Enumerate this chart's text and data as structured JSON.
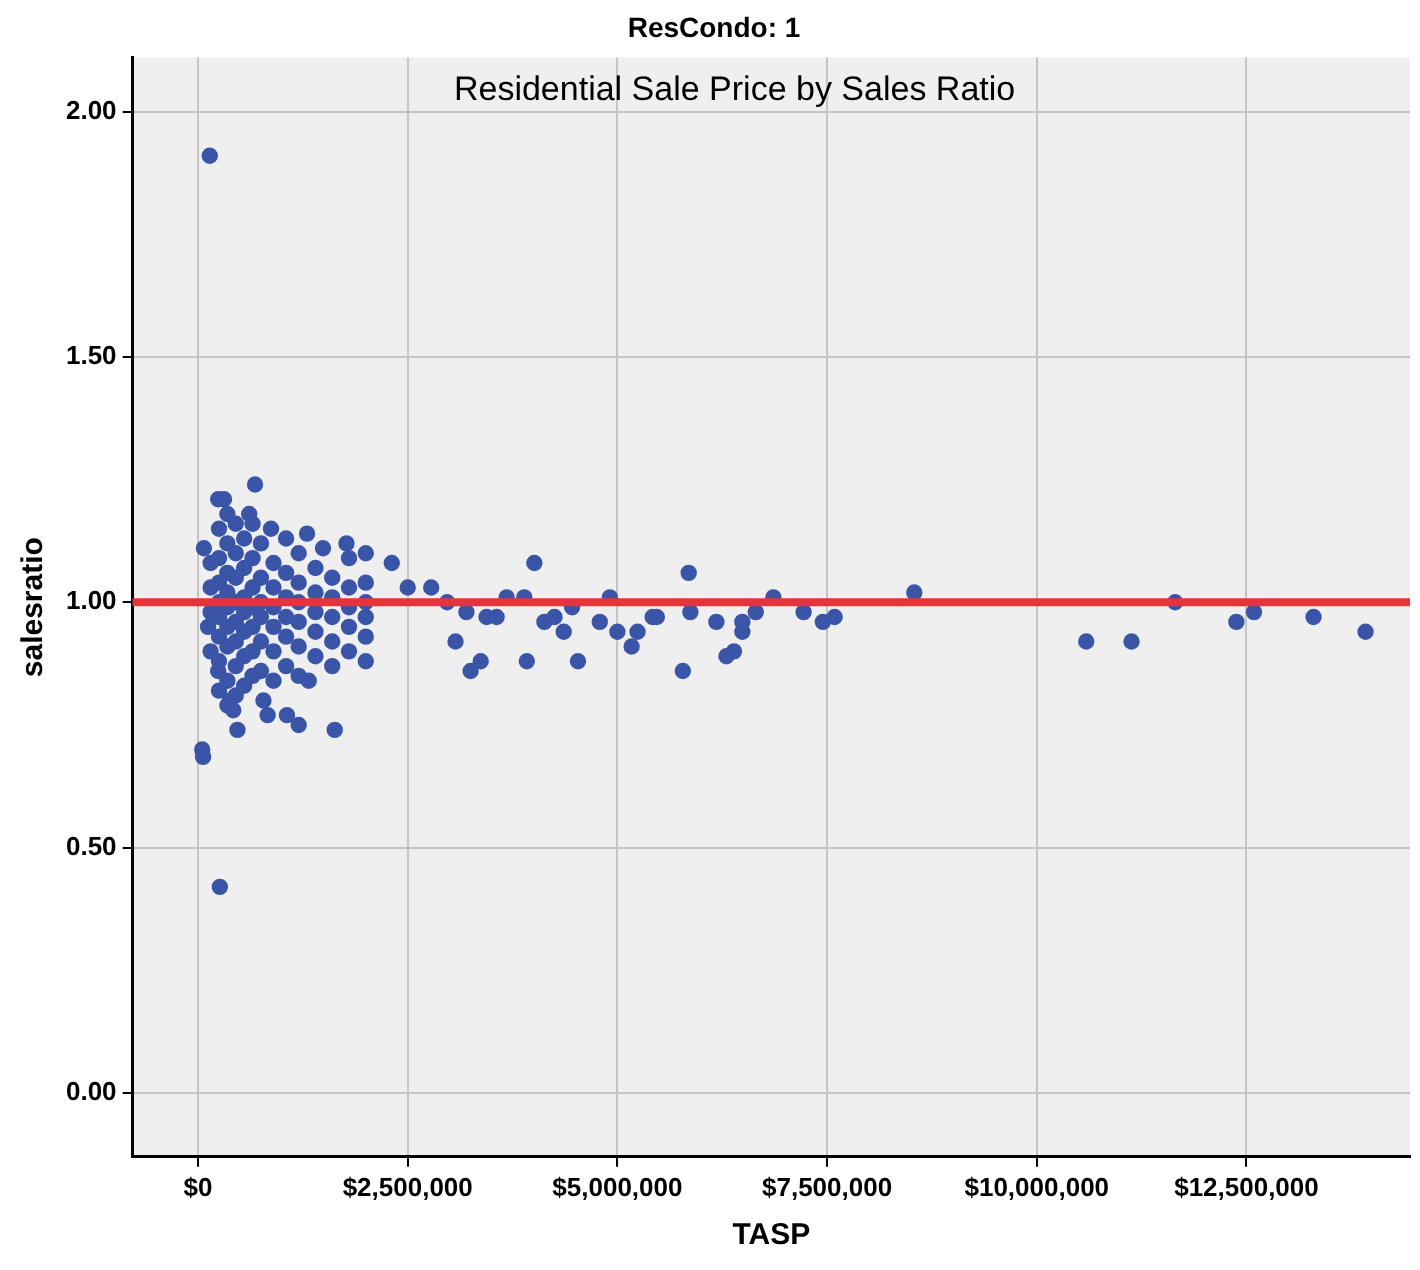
{
  "chart_data": {
    "type": "scatter",
    "title": "Residential Sale Price by Sales Ratio",
    "subtitle": "ResCondo: 1",
    "xlabel": "TASP",
    "ylabel": "salesratio",
    "xlim": [
      -780000,
      14450000
    ],
    "ylim": [
      -0.13,
      2.11
    ],
    "xticks": [
      {
        "value": 0,
        "label": "$0"
      },
      {
        "value": 2500000,
        "label": "$2,500,000"
      },
      {
        "value": 5000000,
        "label": "$5,000,000"
      },
      {
        "value": 7500000,
        "label": "$7,500,000"
      },
      {
        "value": 10000000,
        "label": "$10,000,000"
      },
      {
        "value": 12500000,
        "label": "$12,500,000"
      }
    ],
    "yticks": [
      {
        "value": 0,
        "label": "0.00"
      },
      {
        "value": 0.5,
        "label": "0.50"
      },
      {
        "value": 1,
        "label": "1.00"
      },
      {
        "value": 1.5,
        "label": "1.50"
      },
      {
        "value": 2,
        "label": "2.00"
      }
    ],
    "grid": true,
    "marker": "circle",
    "ref_lines": [
      {
        "axis": "y",
        "value": 1,
        "color": "#e8333a"
      }
    ],
    "series": [
      {
        "color": "#3a55a8",
        "x": [
          140000,
          260000,
          50000,
          60000,
          680000,
          240000,
          310000,
          610000,
          70000,
          870000,
          1300000,
          1490000,
          1770000,
          380000,
          420000,
          470000,
          830000,
          1060000,
          1200000,
          1630000,
          1320000,
          780000,
          240000,
          120000,
          150000,
          150000,
          150000,
          150000,
          250000,
          250000,
          250000,
          250000,
          250000,
          250000,
          250000,
          250000,
          350000,
          350000,
          350000,
          350000,
          350000,
          350000,
          350000,
          350000,
          350000,
          450000,
          450000,
          450000,
          450000,
          450000,
          450000,
          450000,
          450000,
          550000,
          550000,
          550000,
          550000,
          550000,
          550000,
          550000,
          650000,
          650000,
          650000,
          650000,
          650000,
          650000,
          650000,
          750000,
          750000,
          750000,
          750000,
          750000,
          750000,
          900000,
          900000,
          900000,
          900000,
          900000,
          900000,
          1050000,
          1050000,
          1050000,
          1050000,
          1050000,
          1050000,
          1200000,
          1200000,
          1200000,
          1200000,
          1200000,
          1200000,
          1400000,
          1400000,
          1400000,
          1400000,
          1400000,
          1600000,
          1600000,
          1600000,
          1600000,
          1600000,
          1800000,
          1800000,
          1800000,
          1800000,
          1800000,
          2000000,
          2000000,
          2000000,
          2000000,
          2000000,
          2000000,
          2310000,
          2500000,
          2780000,
          2970000,
          3200000,
          3070000,
          3250000,
          3370000,
          3440000,
          3560000,
          3680000,
          3890000,
          4010000,
          3920000,
          4130000,
          4250000,
          4360000,
          4460000,
          4530000,
          4790000,
          4910000,
          5000000,
          5170000,
          5240000,
          5420000,
          5470000,
          5780000,
          5850000,
          5870000,
          6180000,
          6300000,
          6390000,
          6490000,
          6490000,
          6650000,
          6860000,
          7220000,
          7450000,
          7590000,
          8540000,
          10590000,
          11130000,
          11650000,
          12380000,
          12590000,
          13300000,
          13920000
        ],
        "values": [
          1.91,
          0.42,
          0.7,
          0.685,
          1.24,
          1.21,
          1.21,
          1.18,
          1.11,
          1.15,
          1.14,
          1.11,
          1.12,
          0.8,
          0.78,
          0.74,
          0.77,
          0.77,
          0.75,
          0.74,
          0.84,
          0.8,
          0.86,
          0.95,
          0.9,
          0.98,
          1.03,
          1.08,
          0.82,
          0.88,
          0.93,
          0.97,
          1.0,
          1.04,
          1.09,
          1.15,
          0.79,
          0.84,
          0.91,
          0.95,
          0.99,
          1.02,
          1.06,
          1.12,
          1.18,
          0.81,
          0.87,
          0.92,
          0.96,
          1.0,
          1.05,
          1.1,
          1.16,
          0.83,
          0.89,
          0.94,
          0.98,
          1.01,
          1.07,
          1.13,
          0.85,
          0.9,
          0.95,
          0.99,
          1.03,
          1.09,
          1.16,
          0.86,
          0.92,
          0.97,
          1.0,
          1.05,
          1.12,
          0.84,
          0.9,
          0.95,
          0.99,
          1.03,
          1.08,
          0.87,
          0.93,
          0.97,
          1.01,
          1.06,
          1.13,
          0.85,
          0.91,
          0.96,
          1.0,
          1.04,
          1.1,
          0.89,
          0.94,
          0.98,
          1.02,
          1.07,
          0.87,
          0.92,
          0.97,
          1.01,
          1.05,
          0.9,
          0.95,
          0.99,
          1.03,
          1.09,
          0.88,
          0.93,
          0.97,
          1.0,
          1.04,
          1.1,
          1.08,
          1.03,
          1.03,
          1.0,
          0.98,
          0.92,
          0.86,
          0.88,
          0.97,
          0.97,
          1.01,
          1.01,
          1.08,
          0.88,
          0.96,
          0.97,
          0.94,
          0.99,
          0.88,
          0.96,
          1.01,
          0.94,
          0.91,
          0.94,
          0.97,
          0.97,
          0.86,
          1.06,
          0.98,
          0.96,
          0.89,
          0.9,
          0.96,
          0.94,
          0.98,
          1.01,
          0.98,
          0.96,
          0.97,
          1.02,
          0.92,
          0.92,
          1.0,
          0.96,
          0.98,
          0.97,
          0.94
        ]
      }
    ]
  }
}
